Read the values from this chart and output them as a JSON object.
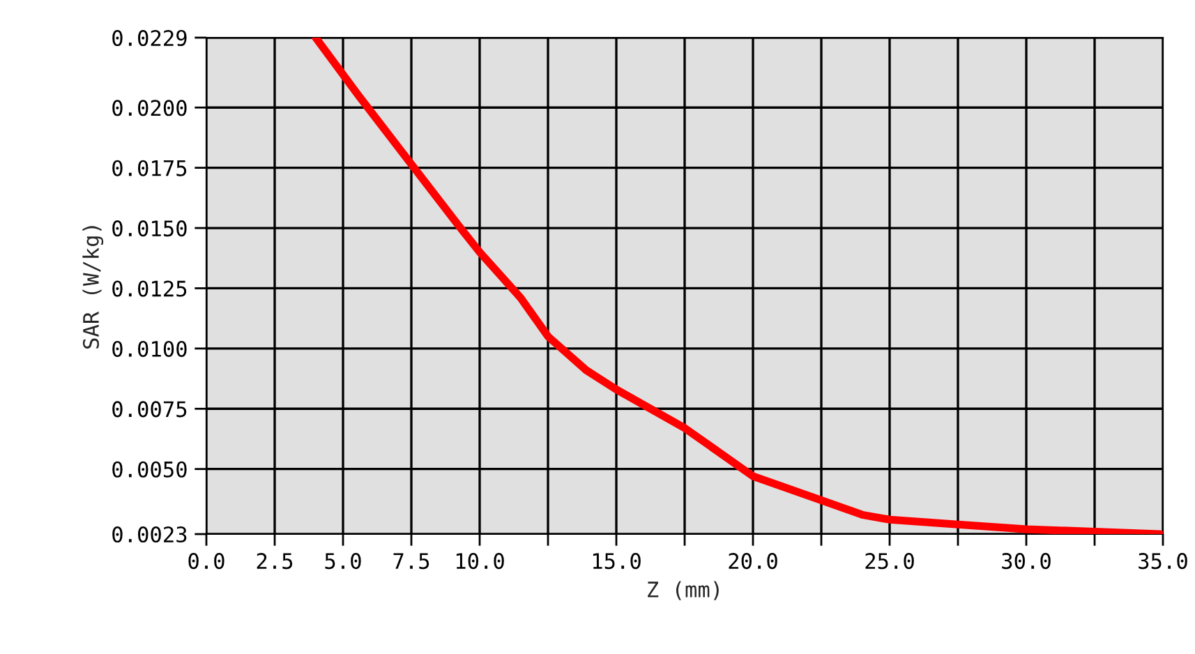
{
  "chart_data": {
    "type": "line",
    "xlabel": "Z (mm)",
    "ylabel": "SAR (W/kg)",
    "x": [
      4.0,
      5.5,
      7.6,
      9.3,
      10.0,
      11.5,
      12.5,
      13.9,
      15.0,
      17.5,
      20.0,
      22.5,
      24.0,
      25.0,
      27.5,
      30.0,
      32.5,
      34.9
    ],
    "series": [
      {
        "color": "#ff0000",
        "values": [
          0.0229,
          0.0206,
          0.0175,
          0.015,
          0.014,
          0.0121,
          0.0105,
          0.0091,
          0.0083,
          0.0067,
          0.0047,
          0.0037,
          0.0031,
          0.0029,
          0.0027,
          0.0025,
          0.0024,
          0.0023
        ]
      }
    ],
    "xlim": [
      0.0,
      35.0
    ],
    "ylim": [
      0.0023,
      0.0229
    ],
    "xticks": [
      {
        "value": 0.0,
        "label": "0.0"
      },
      {
        "value": 2.5,
        "label": "2.5"
      },
      {
        "value": 5.0,
        "label": "5.0"
      },
      {
        "value": 7.5,
        "label": "7.5"
      },
      {
        "value": 10.0,
        "label": "10.0"
      },
      {
        "value": 12.5,
        "label": null
      },
      {
        "value": 15.0,
        "label": "15.0"
      },
      {
        "value": 17.5,
        "label": null
      },
      {
        "value": 20.0,
        "label": "20.0"
      },
      {
        "value": 22.5,
        "label": null
      },
      {
        "value": 25.0,
        "label": "25.0"
      },
      {
        "value": 27.5,
        "label": null
      },
      {
        "value": 30.0,
        "label": "30.0"
      },
      {
        "value": 32.5,
        "label": null
      },
      {
        "value": 35.0,
        "label": "35.0"
      }
    ],
    "yticks": [
      {
        "value": 0.0023,
        "label": "0.0023"
      },
      {
        "value": 0.005,
        "label": "0.0050"
      },
      {
        "value": 0.0075,
        "label": "0.0075"
      },
      {
        "value": 0.01,
        "label": "0.0100"
      },
      {
        "value": 0.0125,
        "label": "0.0125"
      },
      {
        "value": 0.015,
        "label": "0.0150"
      },
      {
        "value": 0.0175,
        "label": "0.0175"
      },
      {
        "value": 0.02,
        "label": "0.0200"
      },
      {
        "value": 0.0229,
        "label": "0.0229"
      }
    ],
    "grid": true,
    "legend": false,
    "marker": "none",
    "line_style": "solid"
  }
}
